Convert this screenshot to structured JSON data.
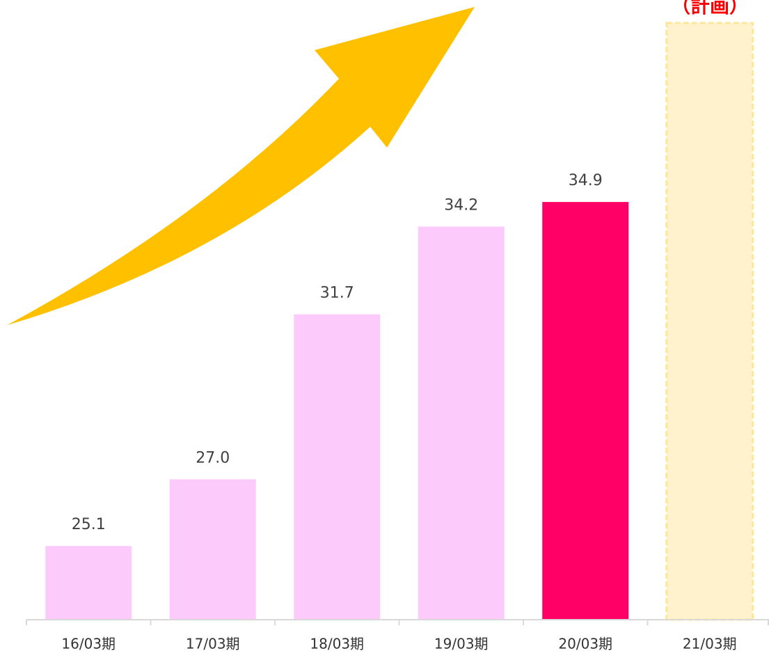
{
  "chart_data": {
    "type": "bar",
    "categories": [
      "16/03期",
      "17/03期",
      "18/03期",
      "19/03期",
      "20/03期",
      "21/03期"
    ],
    "values": [
      25.1,
      27.0,
      31.7,
      34.2,
      34.9,
      40.0
    ],
    "value_labels": [
      "25.1",
      "27.0",
      "31.7",
      "34.2",
      "34.9",
      null
    ],
    "colors": [
      "#fccbfc",
      "#fccbfc",
      "#fccbfc",
      "#fccbfc",
      "#ff0066",
      "#fff2cc"
    ],
    "bar_styles": [
      "solid",
      "solid",
      "solid",
      "solid",
      "solid",
      "dashed"
    ],
    "annotation": "（計画）",
    "ylim": [
      23,
      40
    ]
  }
}
